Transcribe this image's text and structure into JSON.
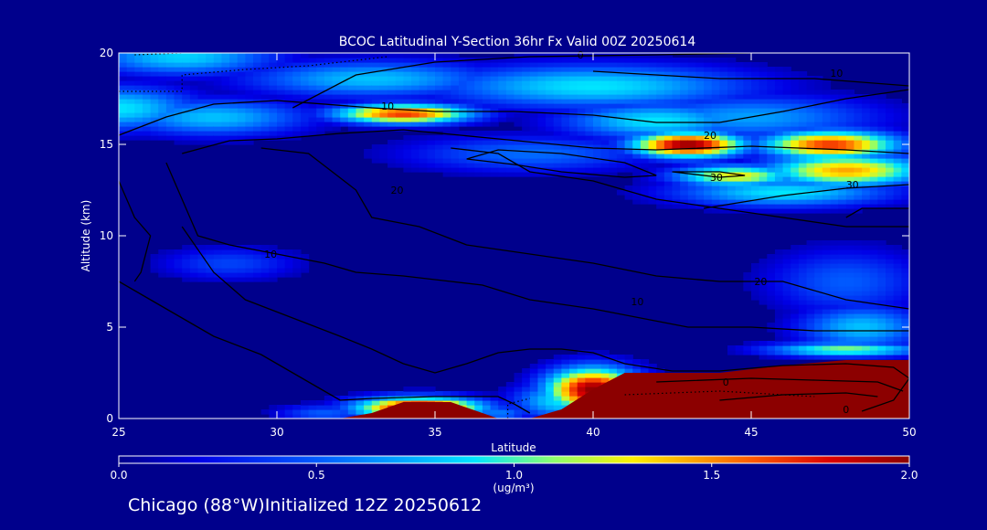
{
  "chart_data": {
    "type": "heatmap",
    "title": "BCOC Latitudinal Y-Section 36hr  Fx Valid 00Z 20250614",
    "xlabel": "Latitude",
    "ylabel": "Altitude (km)",
    "xlim": [
      25,
      50
    ],
    "ylim": [
      0,
      20
    ],
    "xticks": [
      "25",
      "30",
      "35",
      "40",
      "45",
      "50"
    ],
    "yticks": [
      "0",
      "5",
      "10",
      "15",
      "20"
    ],
    "colorbar": {
      "label": "(ug/m³)",
      "range": [
        0.0,
        2.0
      ],
      "ticks": [
        "0.0",
        "0.5",
        "1.0",
        "1.5",
        "2.0"
      ]
    },
    "colors": {
      "background": "#00008c",
      "low": "#0000a0",
      "high": "#8c0000",
      "contour": "#000000"
    },
    "fields": [
      {
        "lat": 25,
        "alt": 17.0,
        "value": 0.9,
        "slat": 2.5,
        "salt": 1.2
      },
      {
        "lat": 27,
        "alt": 19.8,
        "value": 0.85,
        "slat": 3.0,
        "salt": 1.0
      },
      {
        "lat": 28,
        "alt": 16.5,
        "value": 0.8,
        "slat": 3.0,
        "salt": 1.0
      },
      {
        "lat": 33,
        "alt": 18.6,
        "value": 0.8,
        "slat": 4.0,
        "salt": 1.0
      },
      {
        "lat": 34,
        "alt": 16.7,
        "value": 1.7,
        "slat": 2.2,
        "salt": 0.55
      },
      {
        "lat": 40,
        "alt": 18.2,
        "value": 0.9,
        "slat": 5.0,
        "salt": 1.2
      },
      {
        "lat": 42,
        "alt": 16.3,
        "value": 0.9,
        "slat": 3.0,
        "salt": 1.0
      },
      {
        "lat": 45,
        "alt": 16.5,
        "value": 0.7,
        "slat": 4.0,
        "salt": 1.2
      },
      {
        "lat": 43,
        "alt": 15.0,
        "value": 2.0,
        "slat": 1.8,
        "salt": 0.7
      },
      {
        "lat": 47.5,
        "alt": 15.0,
        "value": 1.7,
        "slat": 2.2,
        "salt": 0.8
      },
      {
        "lat": 48,
        "alt": 13.6,
        "value": 1.45,
        "slat": 2.6,
        "salt": 0.9
      },
      {
        "lat": 44.5,
        "alt": 13.3,
        "value": 1.3,
        "slat": 2.0,
        "salt": 0.6
      },
      {
        "lat": 46,
        "alt": 12.4,
        "value": 0.9,
        "slat": 3.5,
        "salt": 0.8
      },
      {
        "lat": 38,
        "alt": 14.5,
        "value": 0.55,
        "slat": 4.0,
        "salt": 1.0
      },
      {
        "lat": 28.5,
        "alt": 8.5,
        "value": 0.42,
        "slat": 2.2,
        "salt": 0.9
      },
      {
        "lat": 48,
        "alt": 7.5,
        "value": 0.5,
        "slat": 2.5,
        "salt": 1.8
      },
      {
        "lat": 48.5,
        "alt": 5.0,
        "value": 0.8,
        "slat": 2.0,
        "salt": 1.2
      },
      {
        "lat": 48,
        "alt": 3.8,
        "value": 1.1,
        "slat": 2.5,
        "salt": 0.4
      },
      {
        "lat": 34.5,
        "alt": 0.6,
        "value": 2.0,
        "slat": 2.0,
        "salt": 0.6
      },
      {
        "lat": 31.5,
        "alt": 0.3,
        "value": 0.5,
        "slat": 1.5,
        "salt": 0.5
      },
      {
        "lat": 37,
        "alt": 0.3,
        "value": 0.6,
        "slat": 1.0,
        "salt": 0.5
      },
      {
        "lat": 40,
        "alt": 1.6,
        "value": 2.0,
        "slat": 1.5,
        "salt": 1.2
      },
      {
        "lat": 39,
        "alt": 1.0,
        "value": 0.9,
        "slat": 1.5,
        "salt": 1.0
      }
    ],
    "surface_layers": [
      {
        "from": 32.0,
        "to": 37.0,
        "points": [
          [
            32.0,
            0
          ],
          [
            33.0,
            0.3
          ],
          [
            34.0,
            0.9
          ],
          [
            35.5,
            0.9
          ],
          [
            36.5,
            0.3
          ],
          [
            37.0,
            0
          ]
        ],
        "value": 2.0
      },
      {
        "from": 38.0,
        "to": 50.0,
        "points": [
          [
            38.0,
            0
          ],
          [
            39.0,
            0.5
          ],
          [
            40.0,
            1.6
          ],
          [
            41.0,
            2.5
          ],
          [
            44.0,
            2.5
          ],
          [
            46.0,
            2.9
          ],
          [
            48.0,
            3.2
          ],
          [
            50.0,
            3.2
          ],
          [
            50.0,
            0
          ]
        ],
        "value": 2.0
      }
    ],
    "contours": [
      [
        [
          25.0,
          15.5
        ],
        [
          26.5,
          16.5
        ],
        [
          28.0,
          17.2
        ],
        [
          30.0,
          17.4
        ],
        [
          33.0,
          17.0
        ],
        [
          35.0,
          16.8
        ],
        [
          37.5,
          16.8
        ],
        [
          40.0,
          16.6
        ],
        [
          42.0,
          16.2
        ],
        [
          44.0,
          16.2
        ],
        [
          46.0,
          16.8
        ],
        [
          48.0,
          17.5
        ],
        [
          50.0,
          18.0
        ]
      ],
      [
        [
          30.5,
          17.0
        ],
        [
          32.5,
          18.8
        ],
        [
          35.0,
          19.5
        ],
        [
          38.0,
          19.8
        ],
        [
          42.0,
          19.9
        ],
        [
          45.0,
          20.0
        ]
      ],
      [
        [
          40.0,
          19.0
        ],
        [
          44.0,
          18.6
        ],
        [
          47.0,
          18.6
        ],
        [
          50.0,
          18.2
        ]
      ],
      [
        [
          25.0,
          13.0
        ],
        [
          25.5,
          11.0
        ],
        [
          26.0,
          10.0
        ],
        [
          25.7,
          8.0
        ],
        [
          25.5,
          7.5
        ]
      ],
      [
        [
          27.0,
          14.5
        ],
        [
          28.5,
          15.2
        ],
        [
          30.0,
          15.3
        ],
        [
          32.0,
          15.6
        ],
        [
          34.0,
          15.8
        ],
        [
          37.0,
          15.3
        ],
        [
          40.0,
          14.8
        ],
        [
          42.0,
          14.7
        ],
        [
          45.0,
          14.9
        ],
        [
          48.0,
          14.7
        ],
        [
          50.0,
          14.5
        ]
      ],
      [
        [
          26.5,
          14.0
        ],
        [
          27.0,
          12.0
        ],
        [
          27.5,
          10.0
        ],
        [
          28.5,
          9.5
        ],
        [
          30.0,
          9.0
        ],
        [
          31.5,
          8.5
        ],
        [
          32.5,
          8.0
        ],
        [
          34.0,
          7.8
        ],
        [
          35.5,
          7.5
        ],
        [
          36.5,
          7.3
        ],
        [
          38.0,
          6.5
        ],
        [
          40.0,
          6.0
        ],
        [
          41.5,
          5.5
        ],
        [
          43.0,
          5.0
        ],
        [
          45.0,
          5.0
        ],
        [
          47.0,
          4.8
        ],
        [
          50.0,
          4.8
        ]
      ],
      [
        [
          29.5,
          14.8
        ],
        [
          31.0,
          14.5
        ],
        [
          32.5,
          12.5
        ],
        [
          33.0,
          11.0
        ],
        [
          34.5,
          10.5
        ],
        [
          36.0,
          9.5
        ],
        [
          38.0,
          9.0
        ],
        [
          40.0,
          8.5
        ],
        [
          42.0,
          7.8
        ],
        [
          44.0,
          7.5
        ],
        [
          46.0,
          7.5
        ],
        [
          48.0,
          6.5
        ],
        [
          50.0,
          6.0
        ]
      ],
      [
        [
          35.5,
          14.8
        ],
        [
          37.0,
          14.5
        ],
        [
          38.0,
          13.5
        ],
        [
          40.0,
          13.0
        ],
        [
          42.0,
          12.0
        ],
        [
          44.0,
          11.5
        ],
        [
          46.0,
          11.0
        ],
        [
          48.0,
          10.5
        ],
        [
          50.0,
          10.5
        ]
      ],
      [
        [
          36.0,
          14.2
        ],
        [
          37.0,
          14.7
        ],
        [
          39.0,
          14.5
        ],
        [
          41.0,
          14.0
        ],
        [
          42.0,
          13.3
        ],
        [
          41.0,
          13.2
        ],
        [
          39.0,
          13.5
        ],
        [
          37.5,
          13.9
        ],
        [
          36.0,
          14.2
        ]
      ],
      [
        [
          42.5,
          13.5
        ],
        [
          44.0,
          13.5
        ],
        [
          44.8,
          13.3
        ],
        [
          44.0,
          13.2
        ],
        [
          42.5,
          13.5
        ]
      ],
      [
        [
          43.5,
          11.5
        ],
        [
          46.0,
          12.2
        ],
        [
          48.0,
          12.6
        ],
        [
          50.0,
          12.8
        ]
      ],
      [
        [
          48.0,
          11.0
        ],
        [
          48.5,
          11.5
        ],
        [
          50.0,
          11.5
        ]
      ],
      [
        [
          27.0,
          10.5
        ],
        [
          28.0,
          8.0
        ],
        [
          29.0,
          6.5
        ],
        [
          30.5,
          5.5
        ],
        [
          32.0,
          4.5
        ],
        [
          33.0,
          3.8
        ],
        [
          34.0,
          3.0
        ],
        [
          35.0,
          2.5
        ],
        [
          36.0,
          3.0
        ],
        [
          37.0,
          3.6
        ],
        [
          38.0,
          3.8
        ],
        [
          39.0,
          3.8
        ],
        [
          40.0,
          3.6
        ],
        [
          41.0,
          3.0
        ],
        [
          42.5,
          2.6
        ],
        [
          44.0,
          2.6
        ],
        [
          46.0,
          2.9
        ],
        [
          48.0,
          3.0
        ],
        [
          49.5,
          2.8
        ],
        [
          50.0,
          2.2
        ],
        [
          49.5,
          1.0
        ],
        [
          48.5,
          0.4
        ]
      ],
      [
        [
          25.0,
          7.5
        ],
        [
          26.0,
          6.5
        ],
        [
          27.0,
          5.5
        ],
        [
          28.0,
          4.5
        ],
        [
          29.5,
          3.5
        ],
        [
          31.0,
          2.0
        ],
        [
          32.0,
          1.0
        ],
        [
          33.0,
          1.1
        ],
        [
          35.0,
          1.2
        ],
        [
          37.0,
          1.2
        ],
        [
          37.5,
          0.8
        ],
        [
          38.0,
          0.3
        ]
      ],
      [
        [
          42.0,
          2.0
        ],
        [
          45.0,
          2.2
        ],
        [
          47.0,
          2.1
        ],
        [
          49.0,
          2.0
        ],
        [
          49.8,
          1.5
        ]
      ],
      [
        [
          44.0,
          1.0
        ],
        [
          46.0,
          1.3
        ],
        [
          48.0,
          1.4
        ],
        [
          49.0,
          1.2
        ]
      ]
    ],
    "dotted_contours": [
      [
        [
          25.0,
          17.9
        ],
        [
          27.0,
          17.9
        ],
        [
          27.0,
          18.8
        ],
        [
          29.0,
          19.1
        ],
        [
          31.0,
          19.3
        ],
        [
          33.5,
          19.8
        ]
      ],
      [
        [
          25.5,
          19.9
        ],
        [
          27.0,
          20.0
        ]
      ],
      [
        [
          37.3,
          0.0
        ],
        [
          37.3,
          0.8
        ],
        [
          38.0,
          1.1
        ]
      ],
      [
        [
          41.0,
          1.3
        ],
        [
          44.0,
          1.5
        ],
        [
          47.0,
          1.2
        ]
      ]
    ],
    "contour_labels": [
      {
        "text": "0",
        "lat": 39.6,
        "alt": 19.9
      },
      {
        "text": "10",
        "lat": 47.7,
        "alt": 18.9
      },
      {
        "text": "10",
        "lat": 33.5,
        "alt": 17.1
      },
      {
        "text": "20",
        "lat": 43.7,
        "alt": 15.5
      },
      {
        "text": "30",
        "lat": 43.9,
        "alt": 13.2
      },
      {
        "text": "30",
        "lat": 48.2,
        "alt": 12.8
      },
      {
        "text": "20",
        "lat": 33.8,
        "alt": 12.5
      },
      {
        "text": "10",
        "lat": 29.8,
        "alt": 9.0
      },
      {
        "text": "10",
        "lat": 41.4,
        "alt": 6.4
      },
      {
        "text": "20",
        "lat": 45.3,
        "alt": 7.5
      },
      {
        "text": "0",
        "lat": 44.2,
        "alt": 2.0
      },
      {
        "text": "0",
        "lat": 48.0,
        "alt": 0.5
      }
    ]
  },
  "footer": {
    "text": "Chicago (88°W)Initialized 12Z 20250612"
  }
}
